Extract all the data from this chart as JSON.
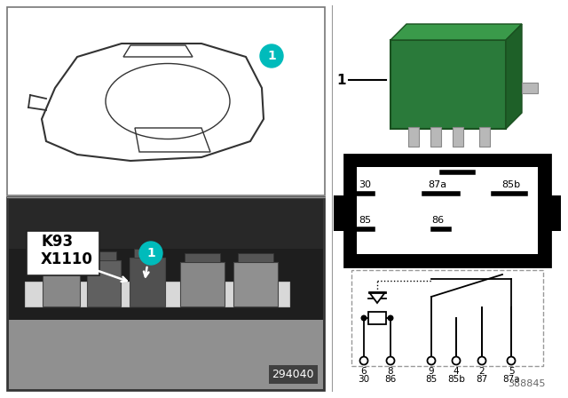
{
  "teal_color": "#00BBBB",
  "photo_num": "294040",
  "diagram_num": "388845",
  "terminal_nums_row1": [
    "6",
    "8",
    "9",
    "4",
    "2",
    "5"
  ],
  "terminal_nums_row2": [
    "30",
    "86",
    "85",
    "85b",
    "87",
    "87a"
  ],
  "relay_green_dark": "#2A7A3A",
  "relay_green_mid": "#3A9A4A",
  "relay_green_light": "#4AAA5A",
  "relay_green_side": "#1E6028"
}
